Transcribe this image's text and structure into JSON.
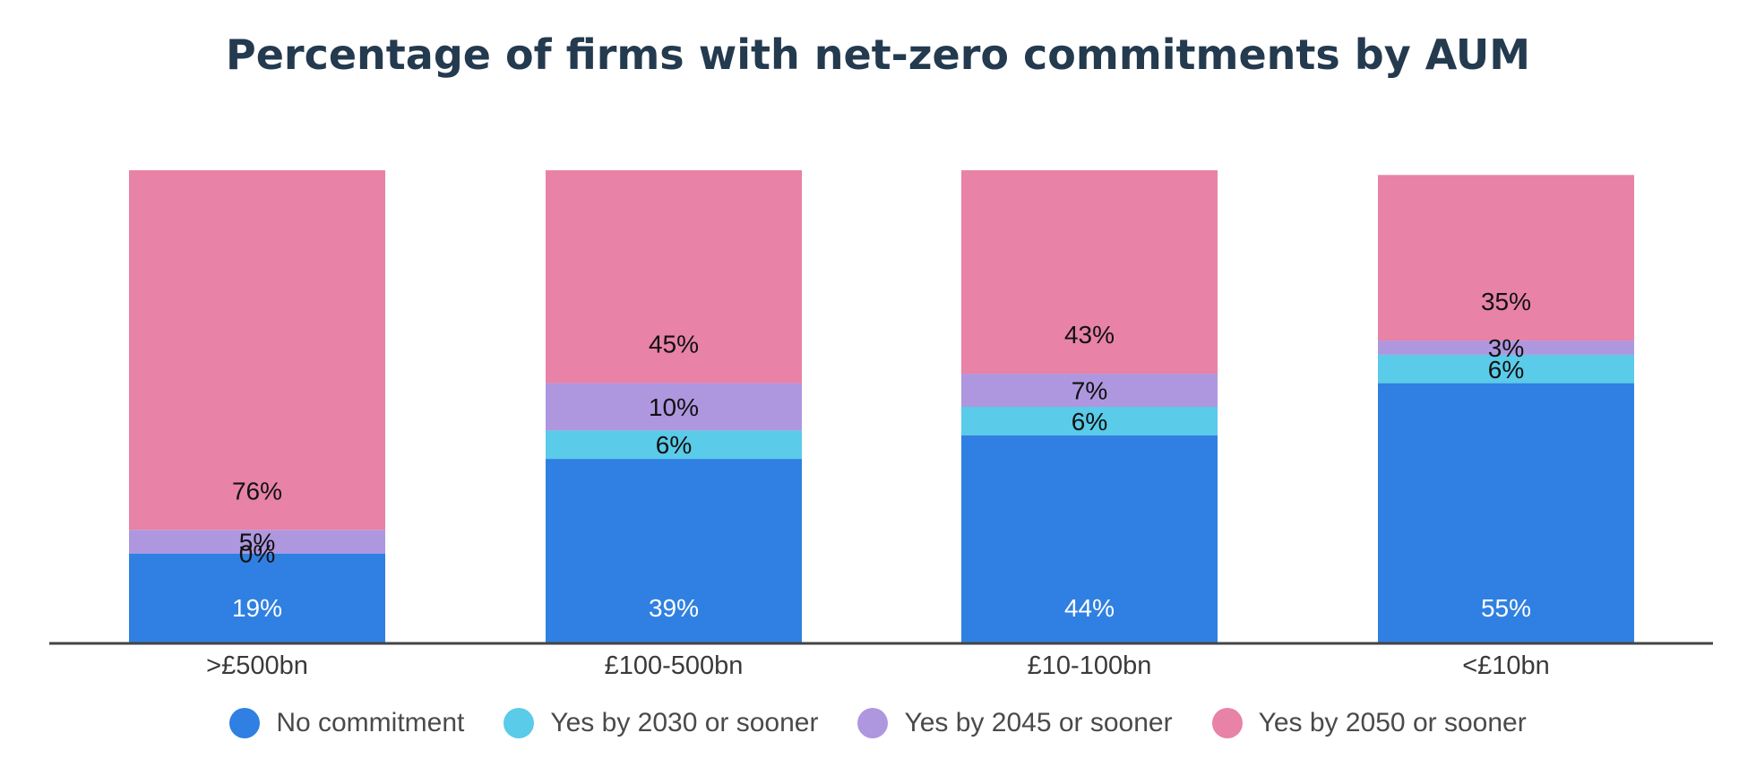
{
  "chart_data": {
    "type": "bar",
    "stacked": true,
    "title": "Percentage of firms with net-zero commitments by AUM",
    "xlabel": "",
    "ylabel": "",
    "ylim": [
      0,
      100
    ],
    "grid": false,
    "legend_position": "bottom",
    "categories": [
      ">£500bn",
      "£100-500bn",
      "£10-100bn",
      "<£10bn"
    ],
    "series": [
      {
        "name": "No commitment",
        "values": [
          19,
          39,
          44,
          55
        ],
        "labels": [
          "19%",
          "39%",
          "44%",
          "55%"
        ],
        "color": "#2f80e2",
        "label_color": "#ffffff"
      },
      {
        "name": "Yes by 2030 or sooner",
        "values": [
          0,
          6,
          6,
          6
        ],
        "labels": [
          "0%",
          "6%",
          "6%",
          "6%"
        ],
        "color": "#5acbe8",
        "label_color": "#111111"
      },
      {
        "name": "Yes by 2045 or sooner",
        "values": [
          5,
          10,
          7,
          3
        ],
        "labels": [
          "5%",
          "10%",
          "7%",
          "3%"
        ],
        "color": "#ae97df",
        "label_color": "#111111"
      },
      {
        "name": "Yes by 2050 or sooner",
        "values": [
          76,
          45,
          43,
          35
        ],
        "labels": [
          "76%",
          "45%",
          "43%",
          "35%"
        ],
        "color": "#e882a7",
        "label_color": "#111111"
      }
    ]
  }
}
